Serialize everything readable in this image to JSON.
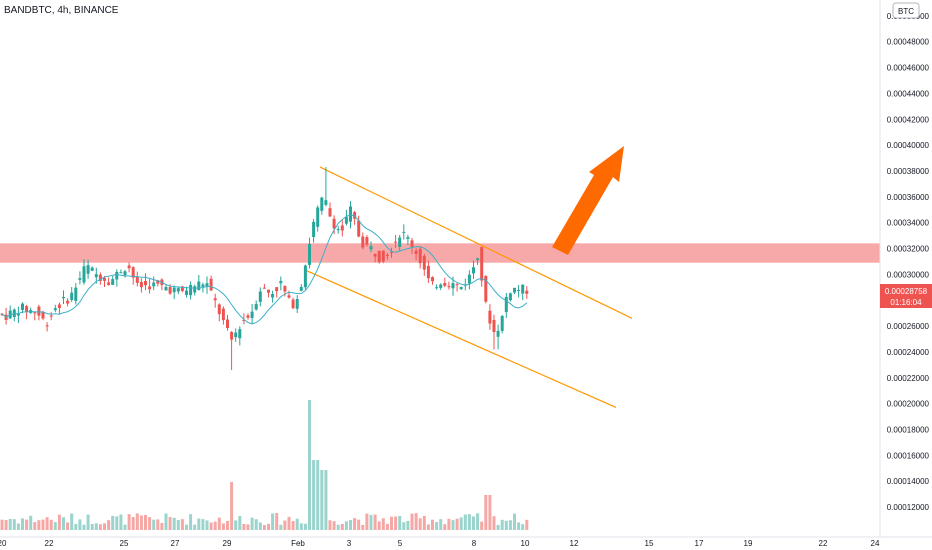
{
  "header": {
    "symbol_label": "BANDBTC, 4h, BINANCE"
  },
  "currency_badge": "BTC",
  "price_tag": {
    "price": "0.00028758",
    "countdown": "01:16:04"
  },
  "colors": {
    "up": "#26a69a",
    "down": "#ef5350",
    "ma": "#3ab0c8",
    "zone": "#f7a9a9",
    "channel": "#ff9800",
    "arrow": "#ff6a00",
    "vol_up": "#9ad4cc",
    "vol_down": "#f4a7a5",
    "price_tag": "#ef5350"
  },
  "chart_data": {
    "type": "candlestick",
    "title": "BANDBTC, 4h, BINANCE",
    "timeframe": "4h",
    "ylim": [
      0.00011,
      0.000505
    ],
    "y_ticks": [
      "0.00012000",
      "0.00014000",
      "0.00016000",
      "0.00018000",
      "0.00020000",
      "0.00022000",
      "0.00024000",
      "0.00026000",
      "0.00028000",
      "0.00030000",
      "0.00032000",
      "0.00034000",
      "0.00036000",
      "0.00038000",
      "0.00040000",
      "0.00042000",
      "0.00044000",
      "0.00046000",
      "0.00048000",
      "0.00050000"
    ],
    "x_ticks": [
      "20",
      "22",
      "25",
      "27",
      "29",
      "Feb",
      "3",
      "5",
      "8",
      "10",
      "12",
      "15",
      "17",
      "19",
      "22",
      "24"
    ],
    "last_price": 0.00028758,
    "resistance_zone": [
      0.000309,
      0.000324
    ],
    "descending_channel": {
      "upper": [
        [
          "Feb 1",
          0.000383
        ],
        [
          "Feb 12",
          0.000266
        ]
      ],
      "lower": [
        [
          "Feb 1",
          0.000303
        ],
        [
          "Feb 12",
          0.000197
        ]
      ]
    },
    "projection_arrow": "up",
    "price_range_shown": {
      "low": 0.000226,
      "high": 0.000383
    },
    "volume_spike": "Jan 29",
    "ma_line": "moving average (light blue)"
  }
}
